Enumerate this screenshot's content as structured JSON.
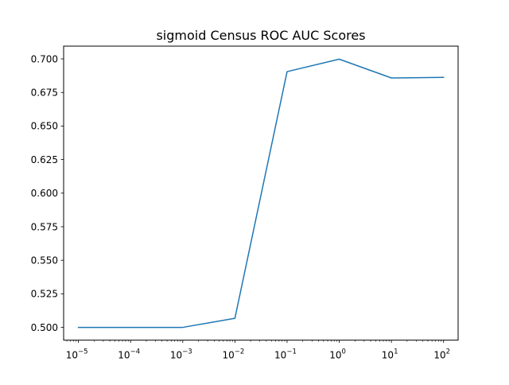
{
  "chart_data": {
    "type": "line",
    "title": "sigmoid Census ROC AUC Scores",
    "xlabel": "",
    "ylabel": "",
    "x_scale": "log",
    "x": [
      1e-05,
      0.0001,
      0.001,
      0.01,
      0.1,
      1,
      10,
      100
    ],
    "series": [
      {
        "values": [
          0.5,
          0.5,
          0.5,
          0.5068,
          0.6905,
          0.6998,
          0.6858,
          0.6862
        ]
      }
    ],
    "xlim": [
      5.2e-06,
      190
    ],
    "ylim": [
      0.4905,
      0.7095
    ],
    "x_ticks": [
      {
        "value": 1e-05,
        "base": "10",
        "exp": "−5"
      },
      {
        "value": 0.0001,
        "base": "10",
        "exp": "−4"
      },
      {
        "value": 0.001,
        "base": "10",
        "exp": "−3"
      },
      {
        "value": 0.01,
        "base": "10",
        "exp": "−2"
      },
      {
        "value": 0.1,
        "base": "10",
        "exp": "−1"
      },
      {
        "value": 1,
        "base": "10",
        "exp": "0"
      },
      {
        "value": 10,
        "base": "10",
        "exp": "1"
      },
      {
        "value": 100,
        "base": "10",
        "exp": "2"
      }
    ],
    "y_ticks": [
      {
        "value": 0.5,
        "label": "0.500"
      },
      {
        "value": 0.525,
        "label": "0.525"
      },
      {
        "value": 0.55,
        "label": "0.550"
      },
      {
        "value": 0.575,
        "label": "0.575"
      },
      {
        "value": 0.6,
        "label": "0.600"
      },
      {
        "value": 0.625,
        "label": "0.625"
      },
      {
        "value": 0.65,
        "label": "0.650"
      },
      {
        "value": 0.675,
        "label": "0.675"
      },
      {
        "value": 0.7,
        "label": "0.700"
      }
    ],
    "grid": false,
    "line_color": "#1f77b4"
  }
}
